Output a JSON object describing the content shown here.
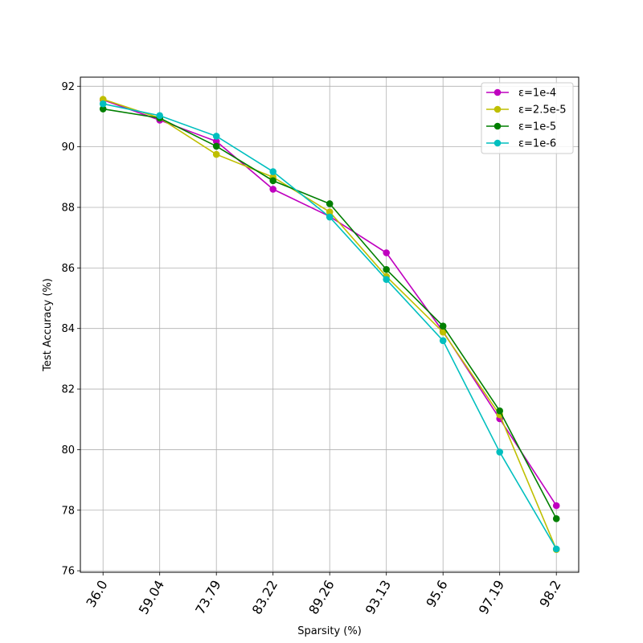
{
  "chart_data": {
    "type": "line",
    "title": "",
    "xlabel": "Sparsity (%)",
    "ylabel": "Test Accuracy (%)",
    "categories": [
      "36.0",
      "59.04",
      "73.79",
      "83.22",
      "89.26",
      "93.13",
      "95.6",
      "97.19",
      "98.2"
    ],
    "ylim": [
      75.95,
      92.3
    ],
    "yticks": [
      76,
      78,
      80,
      82,
      84,
      86,
      88,
      90,
      92
    ],
    "grid": true,
    "legend_position": "top-right",
    "series": [
      {
        "name": "ε=1e-4",
        "color": "#bf00bf",
        "values": [
          91.55,
          90.88,
          90.18,
          88.6,
          87.7,
          86.5,
          83.9,
          81.02,
          78.15
        ]
      },
      {
        "name": "ε=2.5e-5",
        "color": "#bfbf00",
        "values": [
          91.57,
          90.95,
          89.75,
          89.0,
          87.85,
          85.72,
          83.88,
          81.15,
          76.7
        ]
      },
      {
        "name": "ε=1e-5",
        "color": "#007f00",
        "values": [
          91.25,
          90.95,
          90.02,
          88.88,
          88.12,
          85.95,
          84.08,
          81.28,
          77.72
        ]
      },
      {
        "name": "ε=1e-6",
        "color": "#00bfbf",
        "values": [
          91.42,
          91.03,
          90.35,
          89.18,
          87.68,
          85.62,
          83.6,
          79.92,
          76.72
        ]
      }
    ]
  }
}
